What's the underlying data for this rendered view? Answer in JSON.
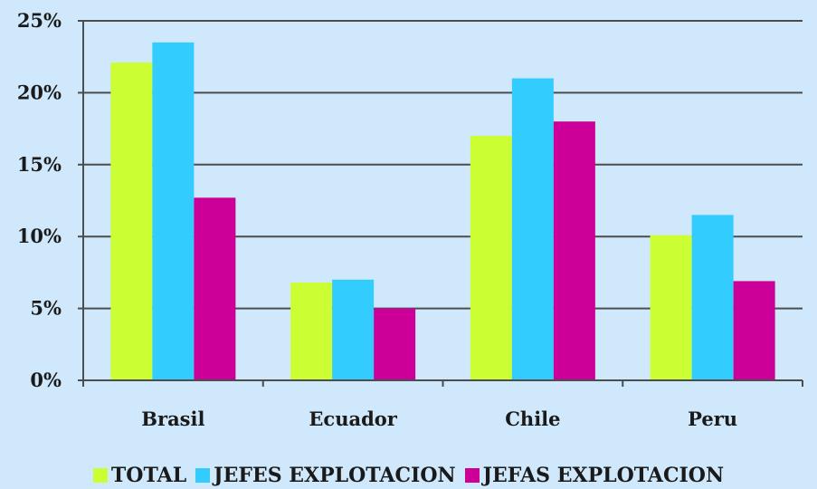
{
  "chart_data": {
    "type": "bar",
    "categories": [
      "Brasil",
      "Ecuador",
      "Chile",
      "Peru"
    ],
    "series": [
      {
        "name": "TOTAL",
        "values": [
          22.1,
          6.8,
          17.0,
          10.1
        ],
        "color": "#ccff33"
      },
      {
        "name": "JEFES EXPLOTACION",
        "values": [
          23.5,
          7.0,
          21.0,
          11.5
        ],
        "color": "#33ccff"
      },
      {
        "name": "JEFAS EXPLOTACION",
        "values": [
          12.7,
          5.0,
          18.0,
          6.9
        ],
        "color": "#cc0099"
      }
    ],
    "y_ticks": [
      "0%",
      "5%",
      "10%",
      "15%",
      "20%",
      "25%"
    ],
    "ylim": [
      0,
      25
    ],
    "grid": true,
    "legend_position": "bottom",
    "background_color": "#cfe8fb",
    "grid_color": "#4d4d4d"
  }
}
